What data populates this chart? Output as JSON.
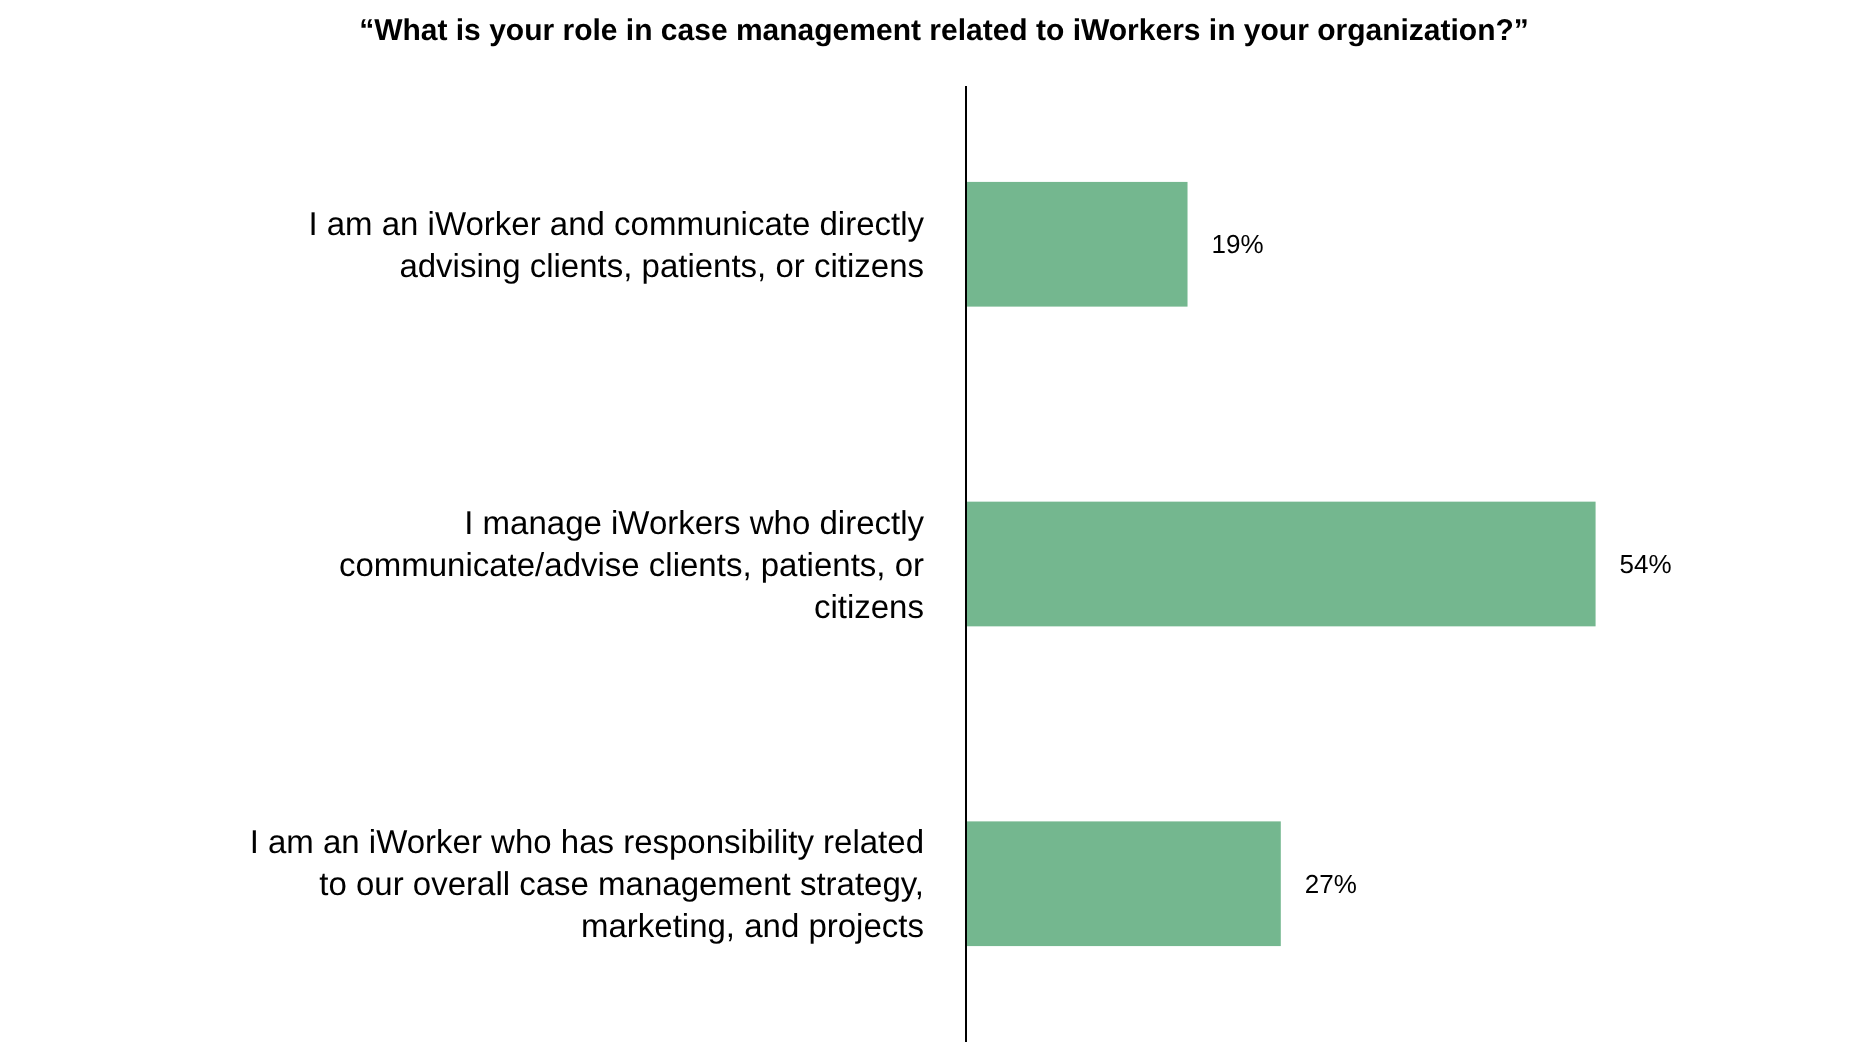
{
  "chart_data": {
    "type": "bar",
    "orientation": "horizontal",
    "title": "“What is your role in case management related to iWorkers in your organization?”",
    "categories": [
      "I am an iWorker and communicate directly advising clients, patients, or citizens",
      "I manage iWorkers who directly communicate/advise clients, patients, or citizens",
      "I am an iWorker who has responsibility related to our overall case management strategy, marketing, and projects"
    ],
    "values": [
      19,
      54,
      27
    ],
    "value_labels": [
      "19%",
      "54%",
      "27%"
    ],
    "color": "#74b78f"
  }
}
